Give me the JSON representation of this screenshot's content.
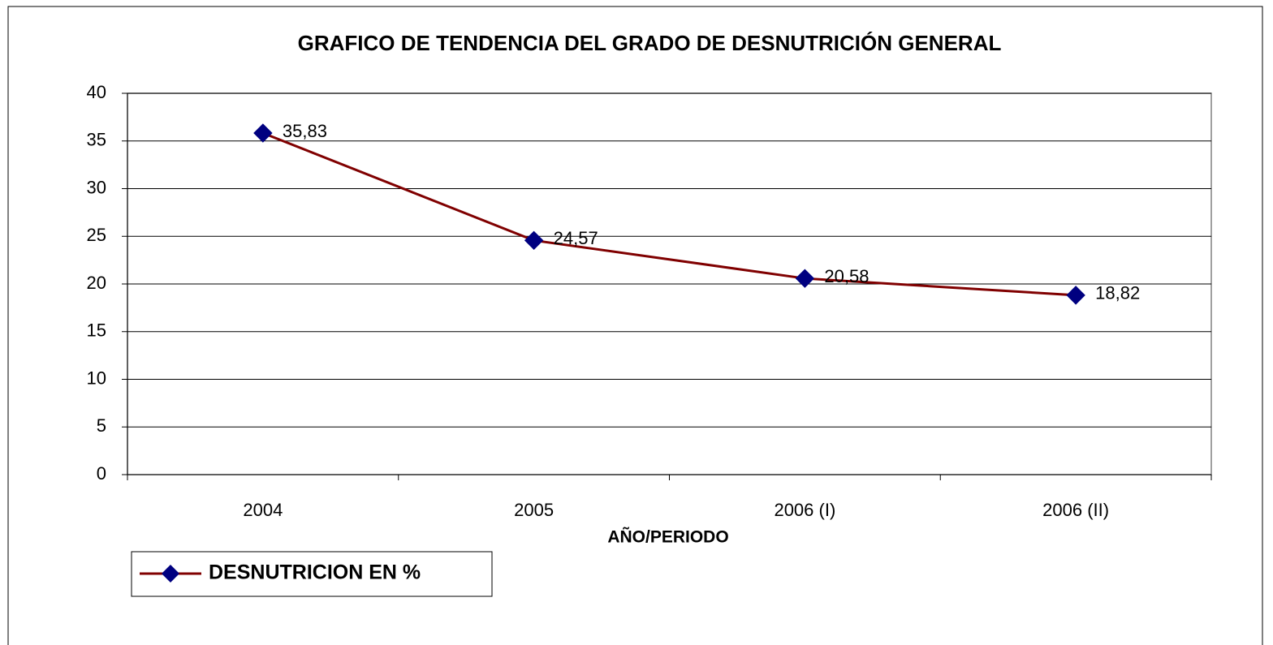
{
  "chart_data": {
    "type": "line",
    "title": "GRAFICO DE TENDENCIA DEL GRADO DE DESNUTRICIÓN GENERAL",
    "x_label": "AÑO/PERIODO",
    "categories": [
      "2004",
      "2005",
      "2006 (I)",
      "2006 (II)"
    ],
    "series": [
      {
        "name": "DESNUTRICION EN %",
        "color": "#800000",
        "marker_color": "#000080",
        "values": [
          35.83,
          24.57,
          20.58,
          18.82
        ],
        "value_labels": [
          "35,83",
          "24,57",
          "20,58",
          "18,82"
        ]
      }
    ],
    "ylim": [
      0,
      40
    ],
    "yticks": [
      0,
      5,
      10,
      15,
      20,
      25,
      30,
      35,
      40
    ],
    "grid": true,
    "legend": "bottom-left"
  }
}
